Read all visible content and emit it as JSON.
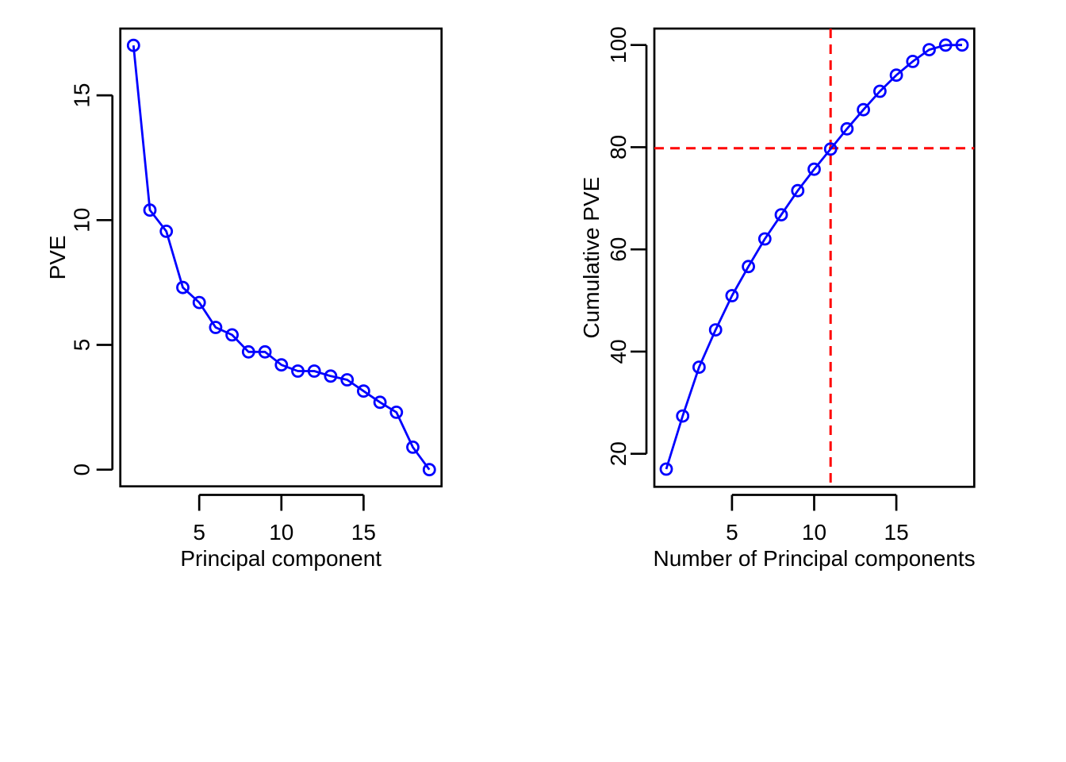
{
  "figure": {
    "background": "#FFFFFF",
    "description": "Two R-style scree plots: proportion of variance explained (PVE) per principal component, and cumulative PVE with dashed reference lines"
  },
  "colors": {
    "series": "#0000FF",
    "reference": "#FF0000",
    "axis": "#000000",
    "background": "#FFFFFF"
  },
  "chart_data": [
    {
      "type": "line",
      "title": "",
      "xlabel": "Principal component",
      "ylabel": "PVE",
      "x": [
        1,
        2,
        3,
        4,
        5,
        6,
        7,
        8,
        9,
        10,
        11,
        12,
        13,
        14,
        15,
        16,
        17,
        18,
        19
      ],
      "series": [
        {
          "name": "PVE",
          "values": [
            17.0,
            10.4,
            9.55,
            7.3,
            6.7,
            5.7,
            5.4,
            4.72,
            4.72,
            4.2,
            3.95,
            3.95,
            3.75,
            3.6,
            3.15,
            2.7,
            2.3,
            0.9,
            0.0
          ]
        }
      ],
      "xticks": [
        5,
        10,
        15
      ],
      "yticks": [
        0,
        5,
        10,
        15
      ],
      "xlim": [
        0.3,
        19.7
      ],
      "ylim": [
        -0.7,
        17.7
      ],
      "grid": false,
      "legend": null,
      "marker": "open-circle",
      "line_color": "#0000FF"
    },
    {
      "type": "line",
      "title": "",
      "xlabel": "Number of Principal components",
      "ylabel": "Cumulative PVE",
      "x": [
        1,
        2,
        3,
        4,
        5,
        6,
        7,
        8,
        9,
        10,
        11,
        12,
        13,
        14,
        15,
        16,
        17,
        18,
        19
      ],
      "series": [
        {
          "name": "Cumulative PVE",
          "values": [
            17.0,
            27.4,
            36.95,
            44.25,
            50.95,
            56.65,
            62.05,
            66.77,
            71.49,
            75.69,
            79.64,
            83.59,
            87.34,
            90.94,
            94.09,
            96.79,
            99.09,
            99.99,
            100.0
          ]
        }
      ],
      "xticks": [
        5,
        10,
        15
      ],
      "yticks": [
        20,
        40,
        60,
        80,
        100
      ],
      "xlim": [
        0.3,
        19.7
      ],
      "ylim": [
        14.5,
        103.5
      ],
      "grid": false,
      "legend": null,
      "marker": "open-circle",
      "line_color": "#0000FF",
      "annotations": {
        "hline_value": 79.8,
        "vline_x": 11,
        "line_style": "dashed",
        "color": "#FF0000"
      }
    }
  ]
}
